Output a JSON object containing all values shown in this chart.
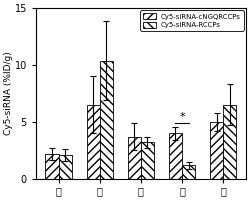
{
  "categories": [
    "心",
    "肝",
    "脾",
    "肺",
    "肆"
  ],
  "series1_values": [
    2.2,
    6.5,
    3.7,
    4.0,
    5.0
  ],
  "series1_errors": [
    0.5,
    2.5,
    1.2,
    0.6,
    0.8
  ],
  "series2_values": [
    2.1,
    10.4,
    3.2,
    1.2,
    6.5
  ],
  "series2_errors": [
    0.5,
    3.5,
    0.5,
    0.3,
    1.8
  ],
  "series1_label": "Cy5-siRNA-cNGQRCCPs",
  "series2_label": "Cy5-siRNA-RCCPs",
  "ylabel": "Cy5-siRNA (%ID/g)",
  "ylim": [
    0,
    15
  ],
  "yticks": [
    0,
    5,
    10,
    15
  ],
  "bar_width": 0.32,
  "hatch1": "////",
  "hatch2": "\\\\\\\\",
  "facecolor": "white",
  "edgecolor": "black",
  "star_organ_idx": 3,
  "star_label": "*"
}
